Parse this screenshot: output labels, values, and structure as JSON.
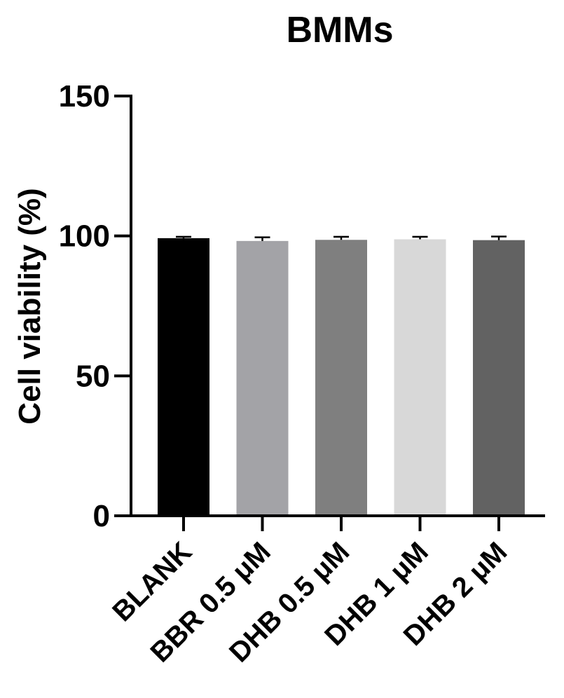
{
  "chart_data": {
    "type": "bar",
    "title": "BMMs",
    "xlabel": "",
    "ylabel": "Cell viability (%)",
    "ylim": [
      0,
      150
    ],
    "yticks": [
      "0",
      "50",
      "100",
      "150"
    ],
    "grid": false,
    "categories": [
      "BLANK",
      "BBR 0.5 μM",
      "DHB 0.5 μM",
      "DHB 1 μM",
      "DHB 2 μM"
    ],
    "values": [
      99.2,
      98.2,
      98.6,
      98.8,
      98.5
    ],
    "errors": [
      0.5,
      1.3,
      1.1,
      0.9,
      1.3
    ],
    "colors": [
      "#000000",
      "#a3a3a7",
      "#7f7f7f",
      "#d8d8d8",
      "#626262"
    ]
  }
}
